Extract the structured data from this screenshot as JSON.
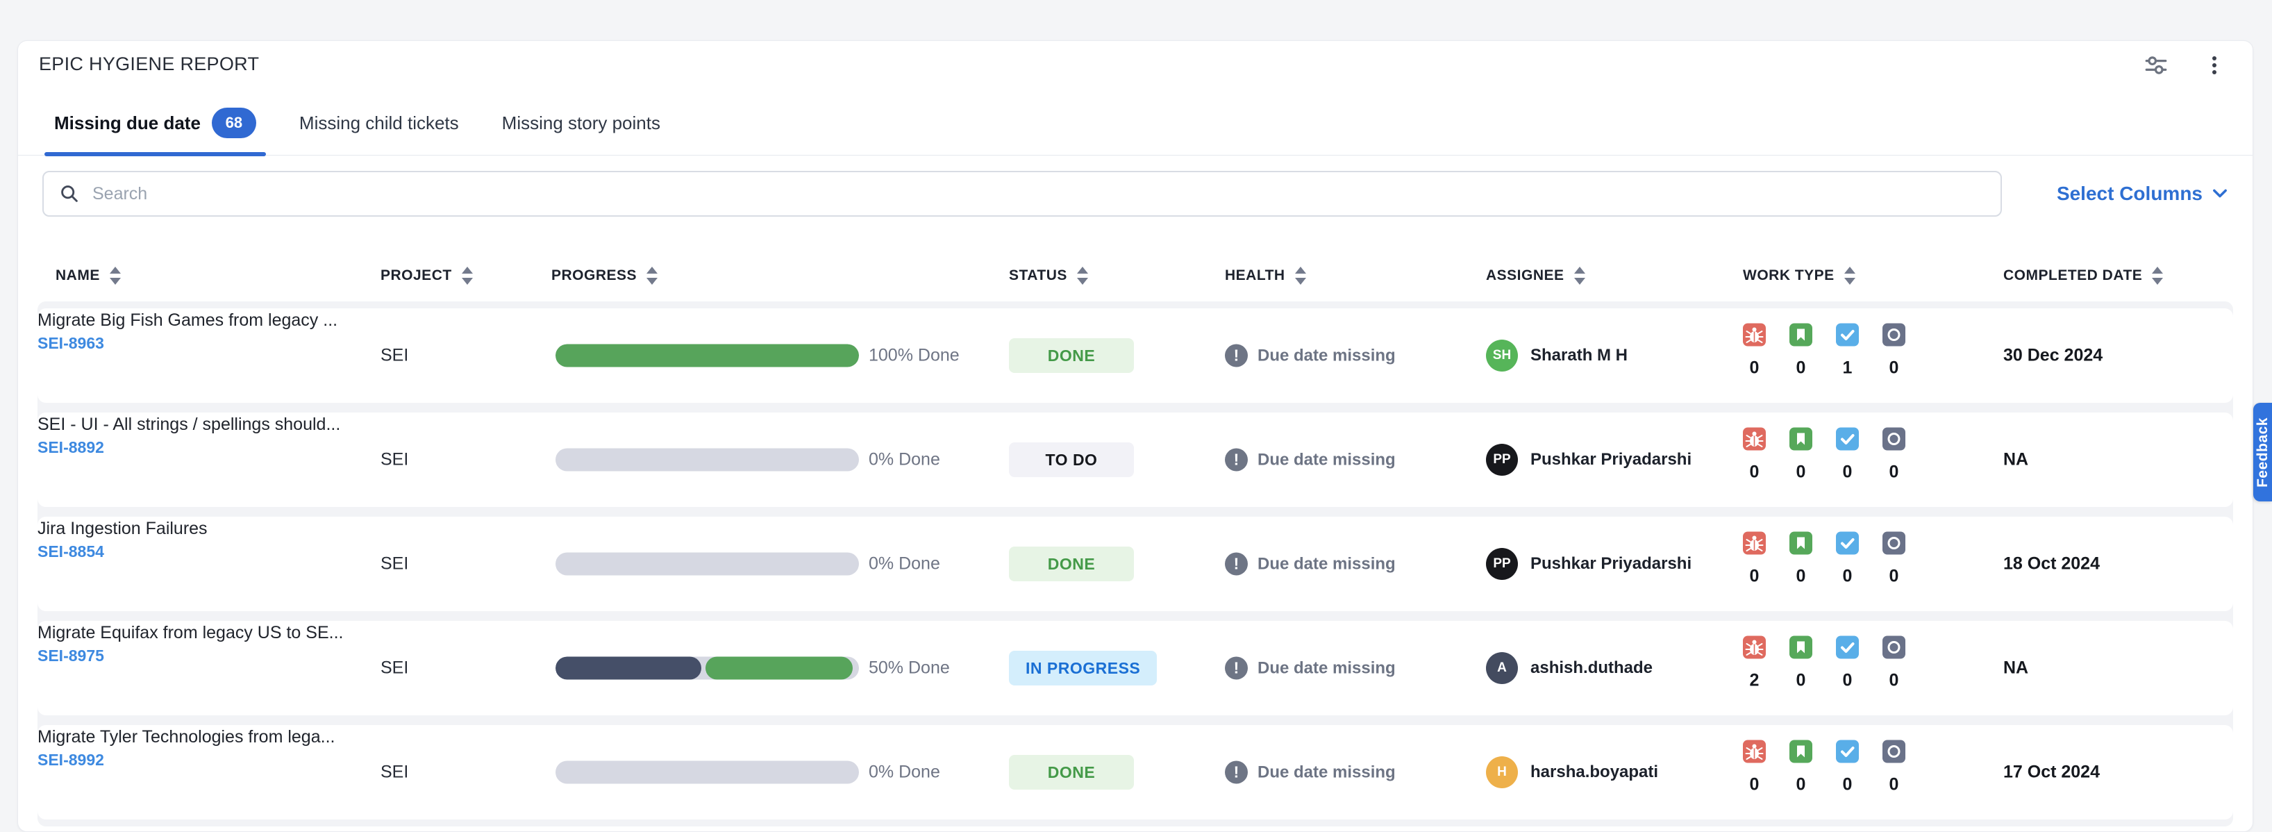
{
  "header": {
    "title": "EPIC HYGIENE REPORT",
    "icons": [
      "filter-sliders",
      "kebab-menu"
    ]
  },
  "tabs": [
    {
      "label": "Missing due date",
      "count": "68",
      "active": true
    },
    {
      "label": "Missing child tickets",
      "active": false
    },
    {
      "label": "Missing story points",
      "active": false
    }
  ],
  "toolbar": {
    "search_placeholder": "Search",
    "select_columns_label": "Select Columns"
  },
  "table": {
    "columns": [
      "Name",
      "Project",
      "Progress",
      "Status",
      "Health",
      "Assignee",
      "Work Type",
      "Completed Date"
    ],
    "work_type_icons": [
      "bug",
      "story",
      "task",
      "other"
    ],
    "rows": [
      {
        "name": "Migrate Big Fish Games from legacy ...",
        "key": "SEI-8963",
        "project": "SEI",
        "progress_label": "100% Done",
        "bar_segments": [
          {
            "color": "#57a45b",
            "width": 100
          }
        ],
        "status": "DONE",
        "status_kind": "done",
        "health": "Due date missing",
        "assignee": "Sharath M H",
        "avatar_initials": "SH",
        "avatar_color": "#56b559",
        "work_counts": [
          0,
          0,
          1,
          0
        ],
        "completed": "30 Dec 2024"
      },
      {
        "name": "SEI - UI - All strings / spellings should...",
        "key": "SEI-8892",
        "project": "SEI",
        "progress_label": "0% Done",
        "bar_segments": [],
        "status": "TO DO",
        "status_kind": "todo",
        "health": "Due date missing",
        "assignee": "Pushkar Priyadarshi",
        "avatar_initials": "PP",
        "avatar_color": "#17181c",
        "work_counts": [
          0,
          0,
          0,
          0
        ],
        "completed": "NA"
      },
      {
        "name": "Jira Ingestion Failures",
        "key": "SEI-8854",
        "project": "SEI",
        "progress_label": "0% Done",
        "bar_segments": [],
        "status": "DONE",
        "status_kind": "done",
        "health": "Due date missing",
        "assignee": "Pushkar Priyadarshi",
        "avatar_initials": "PP",
        "avatar_color": "#17181c",
        "work_counts": [
          0,
          0,
          0,
          0
        ],
        "completed": "18 Oct 2024"
      },
      {
        "name": "Migrate Equifax from legacy US to SE...",
        "key": "SEI-8975",
        "project": "SEI",
        "progress_label": "50% Done",
        "bar_segments": [
          {
            "color": "#454f68",
            "width": 48
          },
          {
            "color": "#57a45b",
            "width": 48.5
          }
        ],
        "status": "IN PROGRESS",
        "status_kind": "inprogress",
        "health": "Due date missing",
        "assignee": "ashish.duthade",
        "avatar_initials": "A",
        "avatar_color": "#434b5f",
        "work_counts": [
          2,
          0,
          0,
          0
        ],
        "completed": "NA"
      },
      {
        "name": "Migrate Tyler Technologies from lega...",
        "key": "SEI-8992",
        "project": "SEI",
        "progress_label": "0% Done",
        "bar_segments": [],
        "status": "DONE",
        "status_kind": "done",
        "health": "Due date missing",
        "assignee": "harsha.boyapati",
        "avatar_initials": "H",
        "avatar_color": "#eeb04a",
        "work_counts": [
          0,
          0,
          0,
          0
        ],
        "completed": "17 Oct 2024"
      }
    ]
  },
  "feedback": {
    "label": "Feedback"
  },
  "colors": {
    "accent_blue": "#3069d2",
    "link_blue": "#3d89e0",
    "progress_green": "#57a45b",
    "progress_dark": "#454f68",
    "progress_empty": "#d6d8e2",
    "chip_done_bg": "#e7f4e5",
    "chip_done_text": "#449a48",
    "chip_todo_bg": "#f2f2f7",
    "chip_todo_text": "#16181d",
    "chip_inprogress_bg": "#d4eefc",
    "chip_inprogress_text": "#1a6fd4",
    "health_gray": "#6e7585",
    "bug_red": "#df6a5f",
    "story_green": "#56a85a",
    "task_blue": "#59aee8",
    "other_slate": "#6a7289",
    "feedback_blue": "#3173dd"
  }
}
